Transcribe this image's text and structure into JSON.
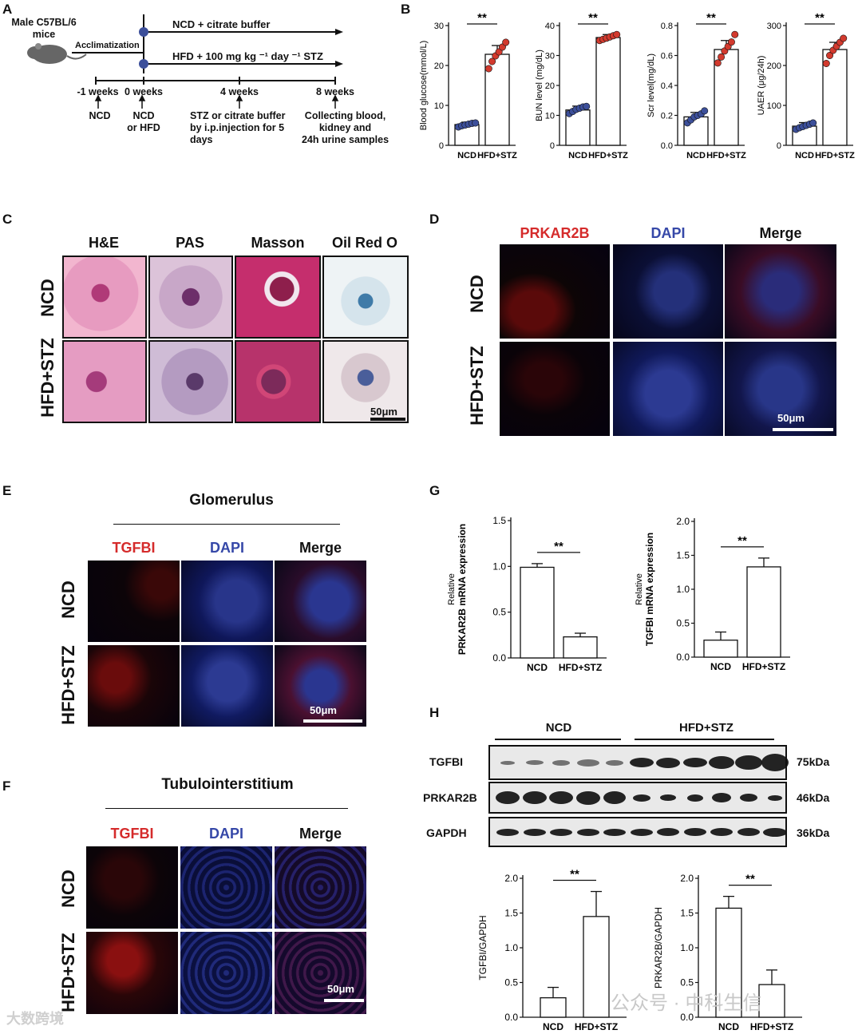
{
  "panelA": {
    "letter": "A",
    "mouse_label": "Male C57BL/6\nmice",
    "acclimatization": "Acclimatization",
    "arm_top": "NCD + citrate buffer",
    "arm_bottom": "HFD + 100 mg kg ⁻¹ day ⁻¹ STZ",
    "timepoints": [
      {
        "label": "-1 weeks",
        "desc": "NCD"
      },
      {
        "label": "0 weeks",
        "desc": "NCD\nor HFD"
      },
      {
        "label": "4 weeks",
        "desc": "STZ or citrate buffer\nby i.p.injection for 5\ndays"
      },
      {
        "label": "8 weeks",
        "desc": "Collecting blood,\nkidney and\n24h urine samples"
      }
    ]
  },
  "panelB": {
    "letter": "B",
    "significance": "**"
  },
  "panelC": {
    "letter": "C",
    "columns": [
      "H&E",
      "PAS",
      "Masson",
      "Oil Red O"
    ],
    "rows": [
      "NCD",
      "HFD+STZ"
    ],
    "scalebar": "50μm"
  },
  "panelD": {
    "letter": "D",
    "columns": [
      "PRKAR2B",
      "DAPI",
      "Merge"
    ],
    "rows": [
      "NCD",
      "HFD+STZ"
    ],
    "scalebar": "50μm"
  },
  "panelE": {
    "letter": "E",
    "title": "Glomerulus",
    "columns": [
      "TGFBI",
      "DAPI",
      "Merge"
    ],
    "rows": [
      "NCD",
      "HFD+STZ"
    ],
    "scalebar": "50μm"
  },
  "panelF": {
    "letter": "F",
    "title": "Tubulointerstitium",
    "columns": [
      "TGFBI",
      "DAPI",
      "Merge"
    ],
    "rows": [
      "NCD",
      "HFD+STZ"
    ],
    "scalebar": "50μm"
  },
  "panelG": {
    "letter": "G"
  },
  "panelH": {
    "letter": "H",
    "groups": [
      "NCD",
      "HFD+STZ"
    ],
    "blots": [
      {
        "name": "TGFBI",
        "size": "75kDa"
      },
      {
        "name": "PRKAR2B",
        "size": "46kDa"
      },
      {
        "name": "GAPDH",
        "size": "36kDa"
      }
    ]
  },
  "watermark": {
    "left": "大数跨境",
    "right": "公众号 · 中科生信"
  },
  "colors": {
    "ncd_dot": "#3c4f9a",
    "hfd_dot": "#d23a2e",
    "red_label": "#d52b2b",
    "blue_label": "#3648a8"
  },
  "chart_data": [
    {
      "id": "B1",
      "type": "bar",
      "panel": "B",
      "categories": [
        "NCD",
        "HFD+STZ"
      ],
      "values": [
        5.2,
        22.8
      ],
      "errors": [
        0.6,
        2.2
      ],
      "points": [
        [
          4.6,
          4.9,
          5.1,
          5.3,
          5.5,
          5.6
        ],
        [
          19.2,
          21.0,
          22.4,
          23.4,
          24.6,
          25.8
        ]
      ],
      "ylabel": "Blood glucose(mmol/L)",
      "ylim": [
        0,
        30
      ],
      "yticks": [
        0,
        10,
        20,
        30
      ],
      "significance": "**"
    },
    {
      "id": "B2",
      "type": "bar",
      "panel": "B",
      "categories": [
        "NCD",
        "HFD+STZ"
      ],
      "values": [
        11.8,
        36.0
      ],
      "errors": [
        1.3,
        1.0
      ],
      "points": [
        [
          10.6,
          11.3,
          12.0,
          12.4,
          12.8,
          13.0
        ],
        [
          35.0,
          35.4,
          35.8,
          36.2,
          36.6,
          37.0
        ]
      ],
      "ylabel": "BUN level (mg/dL)",
      "ylim": [
        0,
        40
      ],
      "yticks": [
        0,
        10,
        20,
        30,
        40
      ],
      "significance": "**"
    },
    {
      "id": "B3",
      "type": "bar",
      "panel": "B",
      "categories": [
        "NCD",
        "HFD+STZ"
      ],
      "values": [
        0.19,
        0.64
      ],
      "errors": [
        0.03,
        0.06
      ],
      "points": [
        [
          0.15,
          0.17,
          0.19,
          0.2,
          0.21,
          0.23
        ],
        [
          0.55,
          0.59,
          0.63,
          0.66,
          0.69,
          0.74
        ]
      ],
      "ylabel": "Scr level(mg/dL)",
      "ylim": [
        0,
        0.8
      ],
      "yticks": [
        "0.0",
        "0.2",
        "0.4",
        "0.6",
        "0.8"
      ],
      "significance": "**"
    },
    {
      "id": "B4",
      "type": "bar",
      "panel": "B",
      "categories": [
        "NCD",
        "HFD+STZ"
      ],
      "values": [
        48,
        240
      ],
      "errors": [
        9,
        18
      ],
      "points": [
        [
          40,
          44,
          47,
          50,
          53,
          56
        ],
        [
          205,
          225,
          238,
          248,
          258,
          268
        ]
      ],
      "ylabel": "UAER (μg/24h)",
      "ylim": [
        0,
        300
      ],
      "yticks": [
        0,
        100,
        200,
        300
      ],
      "significance": "**"
    },
    {
      "id": "G1",
      "type": "bar",
      "panel": "G",
      "categories": [
        "NCD",
        "HFD+STZ"
      ],
      "values": [
        0.99,
        0.23
      ],
      "errors": [
        0.04,
        0.04
      ],
      "ylabel_line1": "Relative",
      "ylabel_line2": "PRKAR2B mRNA expression",
      "ylim": [
        0,
        1.5
      ],
      "yticks": [
        "0.0",
        "0.5",
        "1.0",
        "1.5"
      ],
      "significance": "**"
    },
    {
      "id": "G2",
      "type": "bar",
      "panel": "G",
      "categories": [
        "NCD",
        "HFD+STZ"
      ],
      "values": [
        0.25,
        1.33
      ],
      "errors": [
        0.12,
        0.13
      ],
      "ylabel_line1": "Relative",
      "ylabel_line2": "TGFBI mRNA expression",
      "ylim": [
        0,
        2.0
      ],
      "yticks": [
        "0.0",
        "0.5",
        "1.0",
        "1.5",
        "2.0"
      ],
      "significance": "**"
    },
    {
      "id": "H1",
      "type": "bar",
      "panel": "H",
      "categories": [
        "NCD",
        "HFD+STZ"
      ],
      "values": [
        0.28,
        1.45
      ],
      "errors": [
        0.15,
        0.36
      ],
      "ylabel": "TGFBI/GAPDH",
      "ylim": [
        0,
        2.0
      ],
      "yticks": [
        "0.0",
        "0.5",
        "1.0",
        "1.5",
        "2.0"
      ],
      "significance": "**"
    },
    {
      "id": "H2",
      "type": "bar",
      "panel": "H",
      "categories": [
        "NCD",
        "HFD+STZ"
      ],
      "values": [
        1.57,
        0.47
      ],
      "errors": [
        0.17,
        0.21
      ],
      "ylabel": "PRKAR2B/GAPDH",
      "ylim": [
        0,
        2.0
      ],
      "yticks": [
        "0.0",
        "0.5",
        "1.0",
        "1.5",
        "2.0"
      ],
      "significance": "**"
    }
  ]
}
